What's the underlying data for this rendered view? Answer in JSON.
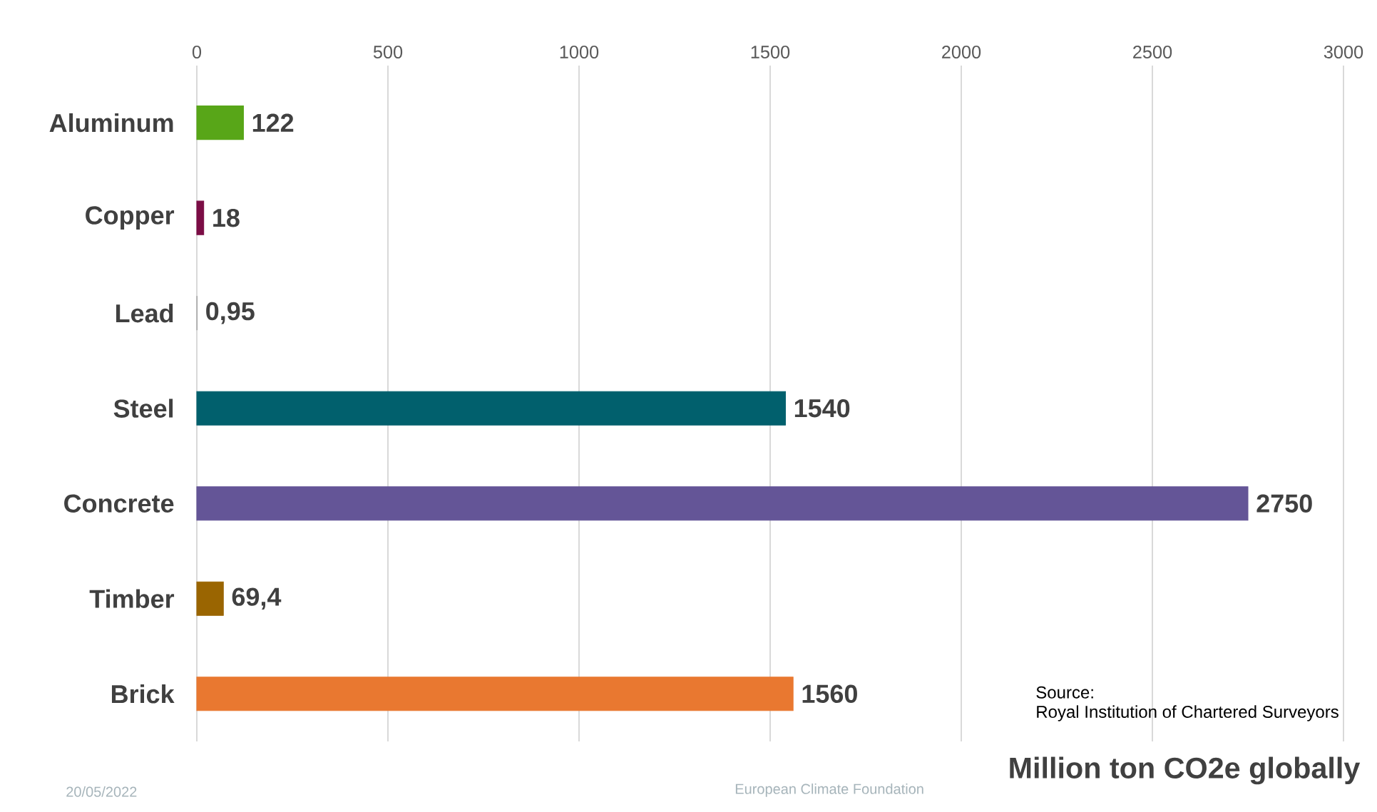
{
  "chart_data": {
    "type": "bar",
    "orientation": "horizontal",
    "xlabel": "Million ton CO2e globally",
    "categories": [
      "Aluminum",
      "Copper",
      "Lead",
      "Steel",
      "Concrete",
      "Timber",
      "Brick"
    ],
    "values": [
      122,
      18,
      0.95,
      1540,
      2750,
      69.4,
      1560
    ],
    "value_labels": [
      "122",
      "18",
      "0,95",
      "1540",
      "2750",
      "69,4",
      "1560"
    ],
    "colors": [
      "#58a618",
      "#7b0d45",
      "#a6a6a6",
      "#01606d",
      "#645597",
      "#9a6501",
      "#e97830"
    ],
    "xlim": [
      0,
      3000
    ],
    "xticks": [
      0,
      500,
      1000,
      1500,
      2000,
      2500,
      3000
    ],
    "grid": "x",
    "annotations": [
      "Source:",
      "Royal Institution of Chartered Surveyors",
      "20/05/2022",
      "European Climate Foundation"
    ]
  }
}
